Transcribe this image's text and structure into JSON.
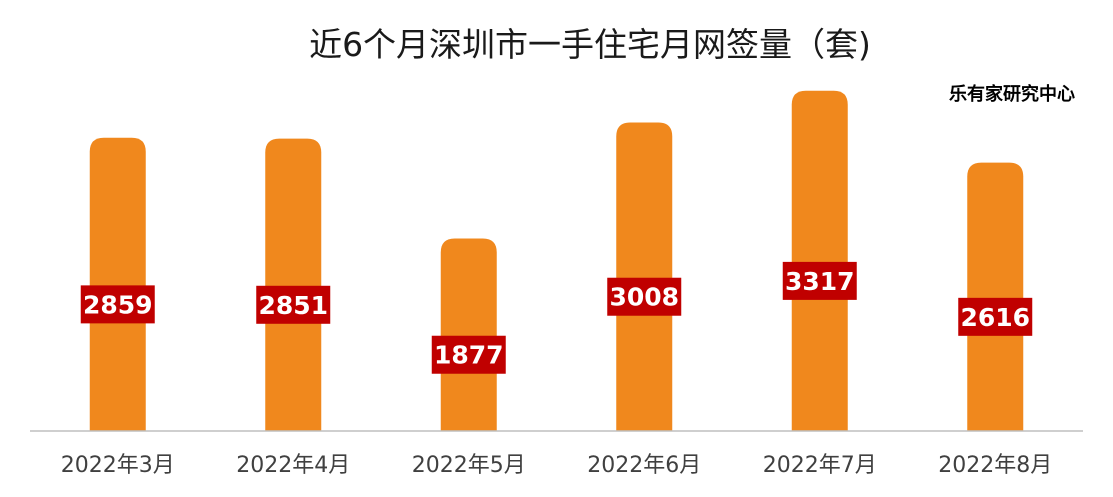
{
  "colors": {
    "bar": "#f0881d",
    "label_bg": "#c00000",
    "label_text": "#ffffff",
    "axis": "#bfbfbf"
  },
  "source": "乐有家研究中心",
  "chart_data": {
    "type": "bar",
    "title": "近6个月深圳市一手住宅月网签量（套)",
    "xlabel": "",
    "ylabel": "",
    "categories": [
      "2022年3月",
      "2022年4月",
      "2022年5月",
      "2022年6月",
      "2022年7月",
      "2022年8月"
    ],
    "values": [
      2859,
      2851,
      1877,
      3008,
      3317,
      2616
    ],
    "data_labels": [
      "2859",
      "2851",
      "1877",
      "3008",
      "3317",
      "2616"
    ],
    "ylim": [
      0,
      3500
    ],
    "grid": false,
    "legend": "none"
  }
}
